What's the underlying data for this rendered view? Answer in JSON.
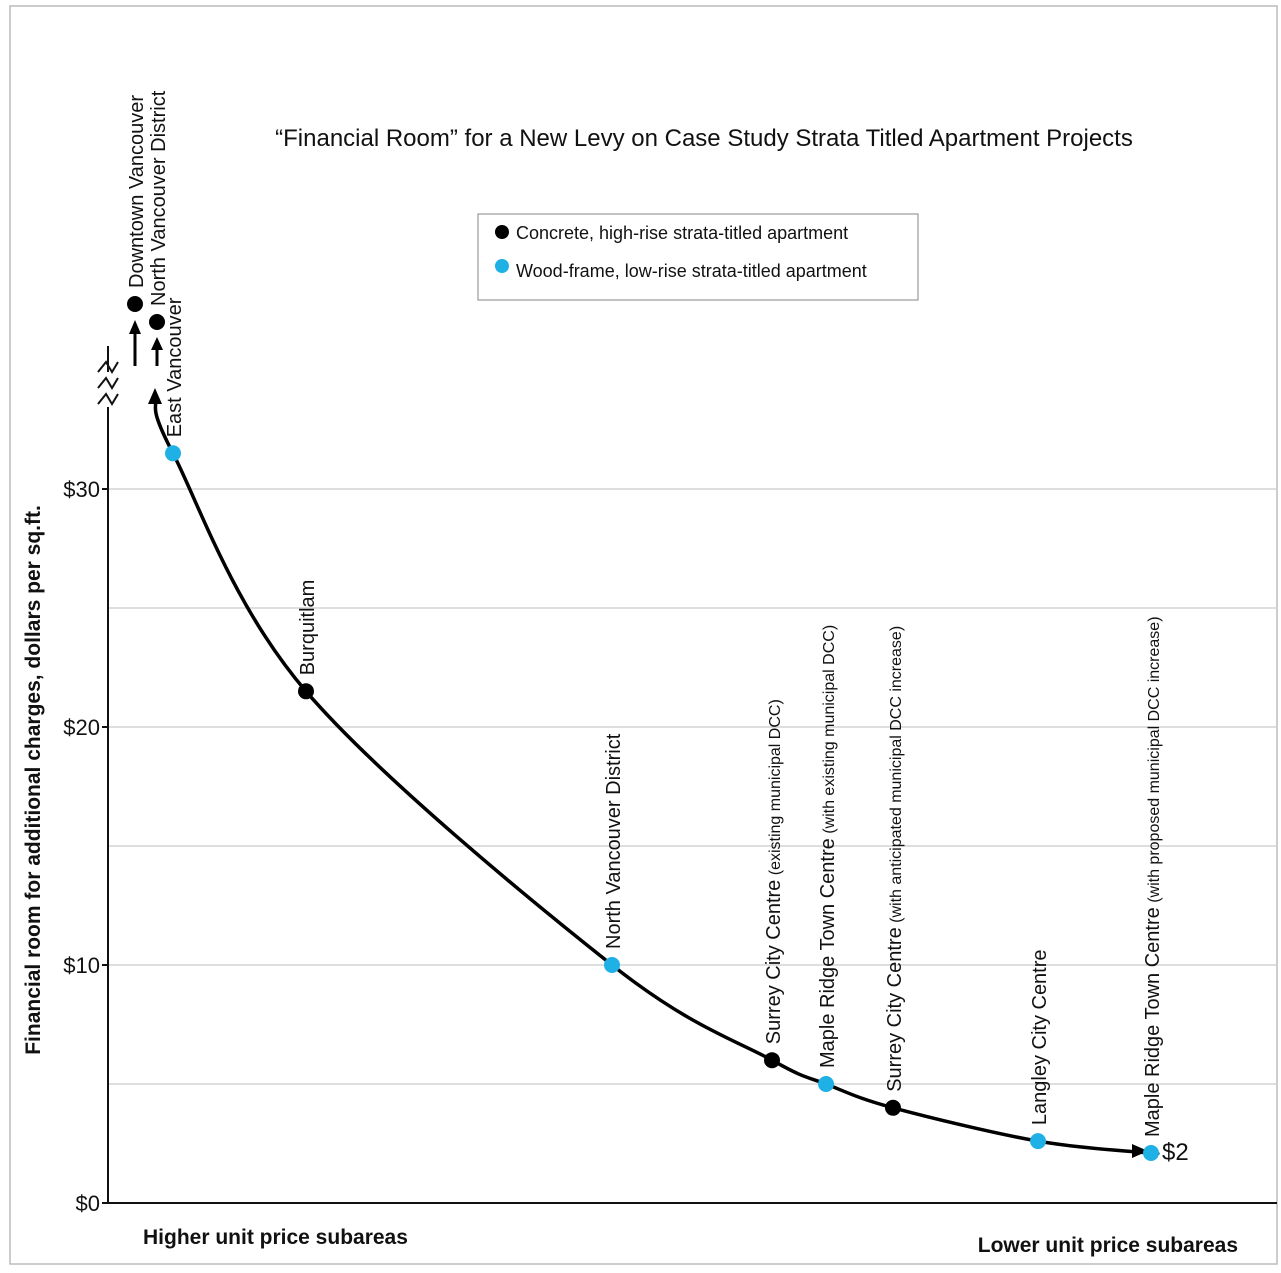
{
  "chart_data": {
    "type": "line",
    "title": "“Financial Room” for a New Levy on Case Study Strata Titled Apartment Projects",
    "ylabel": "Financial room for additional charges, dollars per sq.ft.",
    "x_left_label": "Higher unit price subareas",
    "x_right_label": "Lower unit price subareas",
    "ylim": [
      0,
      30
    ],
    "y_ticks": [
      {
        "value": 0,
        "label": "$0"
      },
      {
        "value": 10,
        "label": "$10"
      },
      {
        "value": 20,
        "label": "$20"
      },
      {
        "value": 30,
        "label": "$30"
      }
    ],
    "grid": true,
    "legend_position": "top-center",
    "legend": [
      {
        "name": "Concrete, high-rise strata-titled apartment",
        "type": "concrete",
        "color": "#000000"
      },
      {
        "name": "Wood-frame, low-rise strata-titled apartment",
        "type": "wood",
        "color": "#1fb0e6"
      }
    ],
    "points": [
      {
        "main": "Downtown Vancouver",
        "sub": "",
        "type": "concrete",
        "value": "off-scale above $30"
      },
      {
        "main": "North Vancouver District",
        "sub": "",
        "type": "concrete",
        "value": "off-scale above $30"
      },
      {
        "main": "East Vancouver",
        "sub": "",
        "type": "wood",
        "value": 31.5
      },
      {
        "main": "Burquitlam",
        "sub": "",
        "type": "concrete",
        "value": 21.5
      },
      {
        "main": "North Vancouver District",
        "sub": "",
        "type": "wood",
        "value": 10
      },
      {
        "main": "Surrey City Centre",
        "sub": " (existing municipal DCC)",
        "type": "concrete",
        "value": 6
      },
      {
        "main": "Maple Ridge Town Centre",
        "sub": " (with existing municipal DCC)",
        "type": "wood",
        "value": 5
      },
      {
        "main": "Surrey City Centre",
        "sub": " (with anticipated municipal DCC increase)",
        "type": "concrete",
        "value": 4
      },
      {
        "main": "Langley City Centre",
        "sub": "",
        "type": "wood",
        "value": 2.6
      },
      {
        "main": "Maple Ridge Town Centre",
        "sub": " (with proposed municipal DCC increase)",
        "type": "wood",
        "value": 2.1
      }
    ],
    "end_label": "$2"
  }
}
